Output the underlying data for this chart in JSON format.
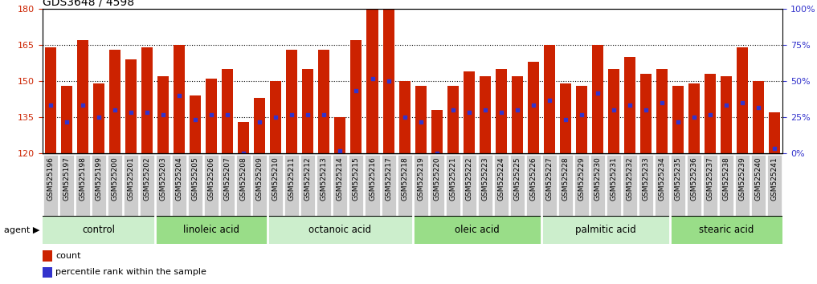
{
  "title": "GDS3648 / 4598",
  "ylim_left": [
    120,
    180
  ],
  "ylim_right": [
    0,
    100
  ],
  "yticks_left": [
    120,
    135,
    150,
    165,
    180
  ],
  "yticks_right": [
    0,
    25,
    50,
    75,
    100
  ],
  "ytick_labels_right": [
    "0%",
    "25%",
    "50%",
    "75%",
    "100%"
  ],
  "bar_color": "#cc2200",
  "dot_color": "#3333cc",
  "bar_width": 0.7,
  "categories": [
    "GSM525196",
    "GSM525197",
    "GSM525198",
    "GSM525199",
    "GSM525200",
    "GSM525201",
    "GSM525202",
    "GSM525203",
    "GSM525204",
    "GSM525205",
    "GSM525206",
    "GSM525207",
    "GSM525208",
    "GSM525209",
    "GSM525210",
    "GSM525211",
    "GSM525212",
    "GSM525213",
    "GSM525214",
    "GSM525215",
    "GSM525216",
    "GSM525217",
    "GSM525218",
    "GSM525219",
    "GSM525220",
    "GSM525221",
    "GSM525222",
    "GSM525223",
    "GSM525224",
    "GSM525225",
    "GSM525226",
    "GSM525227",
    "GSM525228",
    "GSM525229",
    "GSM525230",
    "GSM525231",
    "GSM525232",
    "GSM525233",
    "GSM525234",
    "GSM525235",
    "GSM525236",
    "GSM525237",
    "GSM525238",
    "GSM525239",
    "GSM525240",
    "GSM525241"
  ],
  "bar_heights": [
    164,
    148,
    167,
    149,
    163,
    159,
    164,
    152,
    165,
    144,
    151,
    155,
    133,
    143,
    150,
    163,
    155,
    163,
    135,
    167,
    190,
    180,
    150,
    148,
    138,
    148,
    154,
    152,
    155,
    152,
    158,
    165,
    149,
    148,
    165,
    155,
    160,
    153,
    155,
    148,
    149,
    153,
    152,
    164,
    150,
    137
  ],
  "dot_values": [
    140,
    133,
    140,
    135,
    138,
    137,
    137,
    136,
    144,
    134,
    136,
    136,
    120,
    133,
    135,
    136,
    136,
    136,
    121,
    146,
    151,
    150,
    135,
    133,
    120,
    138,
    137,
    138,
    137,
    138,
    140,
    142,
    134,
    136,
    145,
    138,
    140,
    138,
    141,
    133,
    135,
    136,
    140,
    141,
    139,
    122
  ],
  "groups": [
    {
      "label": "control",
      "start": 0,
      "end": 7,
      "color": "#cceecc"
    },
    {
      "label": "linoleic acid",
      "start": 7,
      "end": 14,
      "color": "#99dd88"
    },
    {
      "label": "octanoic acid",
      "start": 14,
      "end": 23,
      "color": "#cceecc"
    },
    {
      "label": "oleic acid",
      "start": 23,
      "end": 31,
      "color": "#99dd88"
    },
    {
      "label": "palmitic acid",
      "start": 31,
      "end": 39,
      "color": "#cceecc"
    },
    {
      "label": "stearic acid",
      "start": 39,
      "end": 46,
      "color": "#99dd88"
    }
  ],
  "legend_count_label": "count",
  "legend_pct_label": "percentile rank within the sample",
  "agent_label": "agent",
  "background_color": "#ffffff",
  "title_fontsize": 10,
  "bar_label_fontsize": 6.5,
  "group_fontsize": 8.5,
  "legend_fontsize": 8
}
